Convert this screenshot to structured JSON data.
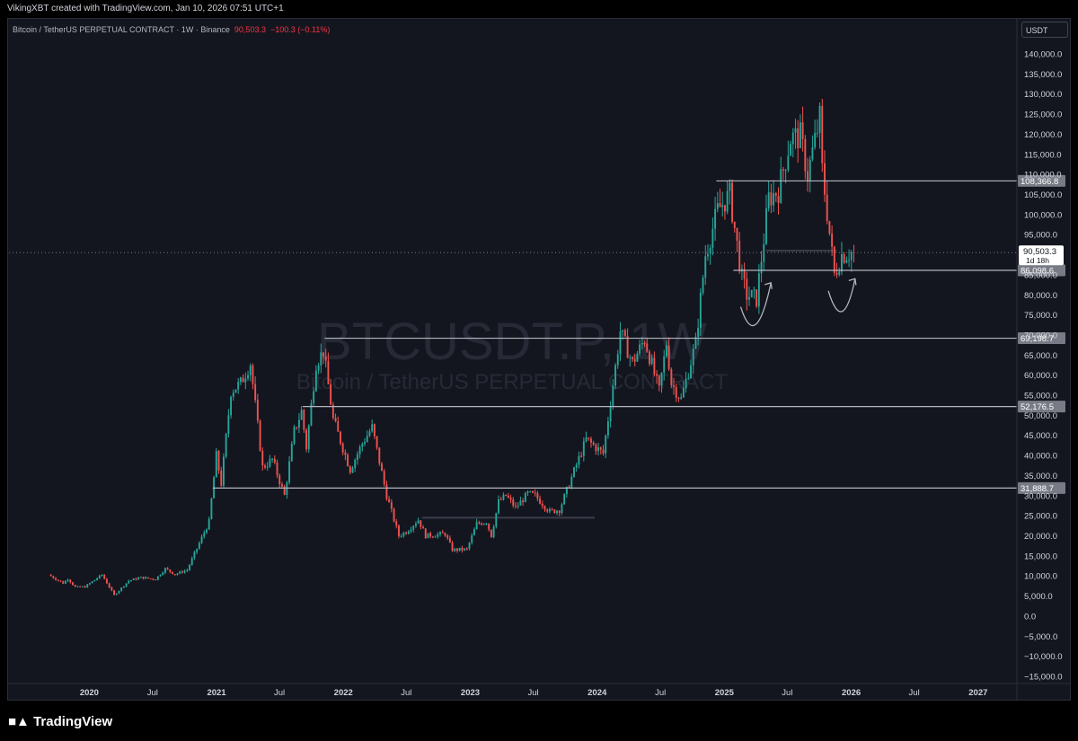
{
  "header": {
    "attribution": "VikingXBT created with TradingView.com, Jan 10, 2026 07:51 UTC+1"
  },
  "symbol": {
    "description": "Bitcoin / TetherUS PERPETUAL CONTRACT · 1W · Binance",
    "last": "90,503.3",
    "change": "−100.3 (−0.11%)",
    "currency": "USDT",
    "watermark_ticker": "BTCUSDT.P, 1W",
    "watermark_name": "Bitcoin / TetherUS PERPETUAL CONTRACT"
  },
  "footer": {
    "brand": "TradingView"
  },
  "chart_data": {
    "type": "candlestick",
    "interval": "1W",
    "colors": {
      "up": "#26a69a",
      "down": "#ef5350",
      "background": "#14161f",
      "level_line": "#b2b5be"
    },
    "y_axis": {
      "ticks": [
        140000,
        135000,
        130000,
        125000,
        120000,
        115000,
        110000,
        105000,
        100000,
        95000,
        90000,
        85000,
        80000,
        75000,
        70000,
        65000,
        60000,
        55000,
        50000,
        45000,
        40000,
        35000,
        30000,
        25000,
        20000,
        15000,
        10000,
        5000,
        0,
        -5000,
        -10000,
        -15000
      ],
      "tick_labels": [
        "140,000.0",
        "135,000.0",
        "130,000.0",
        "125,000.0",
        "120,000.0",
        "115,000.0",
        "110,000.0",
        "105,000.0",
        "100,000.0",
        "95,000.0",
        "90,000.0",
        "85,000.0",
        "80,000.0",
        "75,000.0",
        "70,000.0",
        "65,000.0",
        "60,000.0",
        "55,000.0",
        "50,000.0",
        "45,000.0",
        "40,000.0",
        "35,000.0",
        "30,000.0",
        "25,000.0",
        "20,000.0",
        "15,000.0",
        "10,000.0",
        "5,000.0",
        "0.0",
        "−5,000.0",
        "−10,000.0",
        "−15,000.0"
      ],
      "range": [
        -15000,
        140000
      ]
    },
    "x_axis": {
      "ticks": [
        {
          "date": "2020-01-01",
          "label": "2020",
          "bold": true
        },
        {
          "date": "2020-07-01",
          "label": "Jul",
          "bold": false
        },
        {
          "date": "2021-01-01",
          "label": "2021",
          "bold": true
        },
        {
          "date": "2021-07-01",
          "label": "Jul",
          "bold": false
        },
        {
          "date": "2022-01-01",
          "label": "2022",
          "bold": true
        },
        {
          "date": "2022-07-01",
          "label": "Jul",
          "bold": false
        },
        {
          "date": "2023-01-01",
          "label": "2023",
          "bold": true
        },
        {
          "date": "2023-07-01",
          "label": "Jul",
          "bold": false
        },
        {
          "date": "2024-01-01",
          "label": "2024",
          "bold": true
        },
        {
          "date": "2024-07-01",
          "label": "Jul",
          "bold": false
        },
        {
          "date": "2025-01-01",
          "label": "2025",
          "bold": true
        },
        {
          "date": "2025-07-01",
          "label": "Jul",
          "bold": false
        },
        {
          "date": "2026-01-01",
          "label": "2026",
          "bold": true
        },
        {
          "date": "2026-07-01",
          "label": "Jul",
          "bold": false
        },
        {
          "date": "2027-01-01",
          "label": "2027",
          "bold": true
        }
      ],
      "range": [
        "2019-05-15",
        "2027-04-20"
      ]
    },
    "price_path": [
      [
        "2019-09-09",
        10300
      ],
      [
        "2019-10-21",
        8200
      ],
      [
        "2019-11-04",
        9300
      ],
      [
        "2019-11-25",
        7200
      ],
      [
        "2019-12-23",
        7300
      ],
      [
        "2020-02-10",
        10300
      ],
      [
        "2020-03-16",
        5200
      ],
      [
        "2020-04-27",
        8800
      ],
      [
        "2020-06-01",
        9600
      ],
      [
        "2020-07-13",
        9200
      ],
      [
        "2020-08-10",
        11800
      ],
      [
        "2020-09-07",
        10400
      ],
      [
        "2020-10-12",
        11500
      ],
      [
        "2020-11-02",
        15500
      ],
      [
        "2020-12-14",
        23500
      ],
      [
        "2021-01-04",
        40000
      ],
      [
        "2021-01-18",
        33000
      ],
      [
        "2021-02-15",
        56000
      ],
      [
        "2021-03-15",
        58000
      ],
      [
        "2021-04-12",
        63000
      ],
      [
        "2021-05-17",
        37000
      ],
      [
        "2021-06-14",
        39000
      ],
      [
        "2021-07-19",
        30000
      ],
      [
        "2021-08-16",
        46000
      ],
      [
        "2021-09-06",
        51000
      ],
      [
        "2021-09-20",
        42000
      ],
      [
        "2021-10-18",
        63000
      ],
      [
        "2021-11-08",
        66000
      ],
      [
        "2021-12-06",
        49000
      ],
      [
        "2022-01-24",
        36500
      ],
      [
        "2022-02-28",
        43000
      ],
      [
        "2022-03-28",
        47000
      ],
      [
        "2022-05-09",
        30000
      ],
      [
        "2022-06-13",
        20000
      ],
      [
        "2022-07-04",
        21000
      ],
      [
        "2022-08-08",
        24000
      ],
      [
        "2022-08-29",
        20000
      ],
      [
        "2022-10-24",
        20500
      ],
      [
        "2022-11-14",
        16500
      ],
      [
        "2022-12-26",
        16600
      ],
      [
        "2023-01-23",
        23000
      ],
      [
        "2023-02-20",
        23500
      ],
      [
        "2023-03-06",
        20000
      ],
      [
        "2023-03-27",
        28500
      ],
      [
        "2023-04-17",
        30000
      ],
      [
        "2023-05-15",
        27000
      ],
      [
        "2023-06-19",
        30500
      ],
      [
        "2023-07-10",
        30000
      ],
      [
        "2023-08-21",
        26000
      ],
      [
        "2023-09-18",
        26500
      ],
      [
        "2023-10-23",
        34500
      ],
      [
        "2023-12-04",
        44000
      ],
      [
        "2024-01-22",
        40500
      ],
      [
        "2024-02-26",
        62000
      ],
      [
        "2024-03-11",
        71000
      ],
      [
        "2024-04-15",
        63000
      ],
      [
        "2024-05-20",
        69000
      ],
      [
        "2024-07-01",
        56000
      ],
      [
        "2024-07-22",
        68000
      ],
      [
        "2024-08-05",
        58000
      ],
      [
        "2024-09-02",
        54000
      ],
      [
        "2024-10-14",
        68000
      ],
      [
        "2024-11-11",
        90000
      ],
      [
        "2024-12-16",
        101000
      ],
      [
        "2025-01-20",
        105000
      ],
      [
        "2025-02-24",
        84000
      ],
      [
        "2025-03-10",
        80000
      ],
      [
        "2025-04-07",
        79000
      ],
      [
        "2025-05-12",
        104000
      ],
      [
        "2025-06-09",
        106000
      ],
      [
        "2025-07-14",
        119000
      ],
      [
        "2025-08-11",
        119500
      ],
      [
        "2025-09-01",
        110000
      ],
      [
        "2025-10-06",
        124000
      ],
      [
        "2025-10-13",
        111000
      ],
      [
        "2025-11-17",
        85000
      ],
      [
        "2025-12-08",
        90000
      ],
      [
        "2026-01-05",
        90503.3
      ]
    ],
    "last_price": 90503.3,
    "last_price_countdown": "1d 18h",
    "horizontal_levels": [
      {
        "price": 108366.8,
        "label": "108,366.8",
        "from": "2024-12-09"
      },
      {
        "price": 86098.6,
        "label": "86,098.6",
        "from": "2025-01-27"
      },
      {
        "price": 69198.7,
        "label": "69,198.7",
        "from": "2021-11-08"
      },
      {
        "price": 52176.5,
        "label": "52,176.5",
        "from": "2021-09-06"
      },
      {
        "price": 31888.7,
        "label": "31,888.7",
        "from": "2020-12-21"
      }
    ],
    "faint_levels": [
      {
        "price": 24500,
        "from": "2022-08-15",
        "to": "2023-12-25"
      },
      {
        "price": 91000,
        "from": "2025-05-01",
        "to": "2025-11-20"
      }
    ],
    "arrows": [
      {
        "from": [
          "2025-02-17",
          77000
        ],
        "via": [
          "2025-04-01",
          72000
        ],
        "to": [
          "2025-05-15",
          83000
        ]
      },
      {
        "from": [
          "2025-10-27",
          81000
        ],
        "via": [
          "2025-12-08",
          76000
        ],
        "to": [
          "2026-01-12",
          84000
        ]
      }
    ]
  }
}
